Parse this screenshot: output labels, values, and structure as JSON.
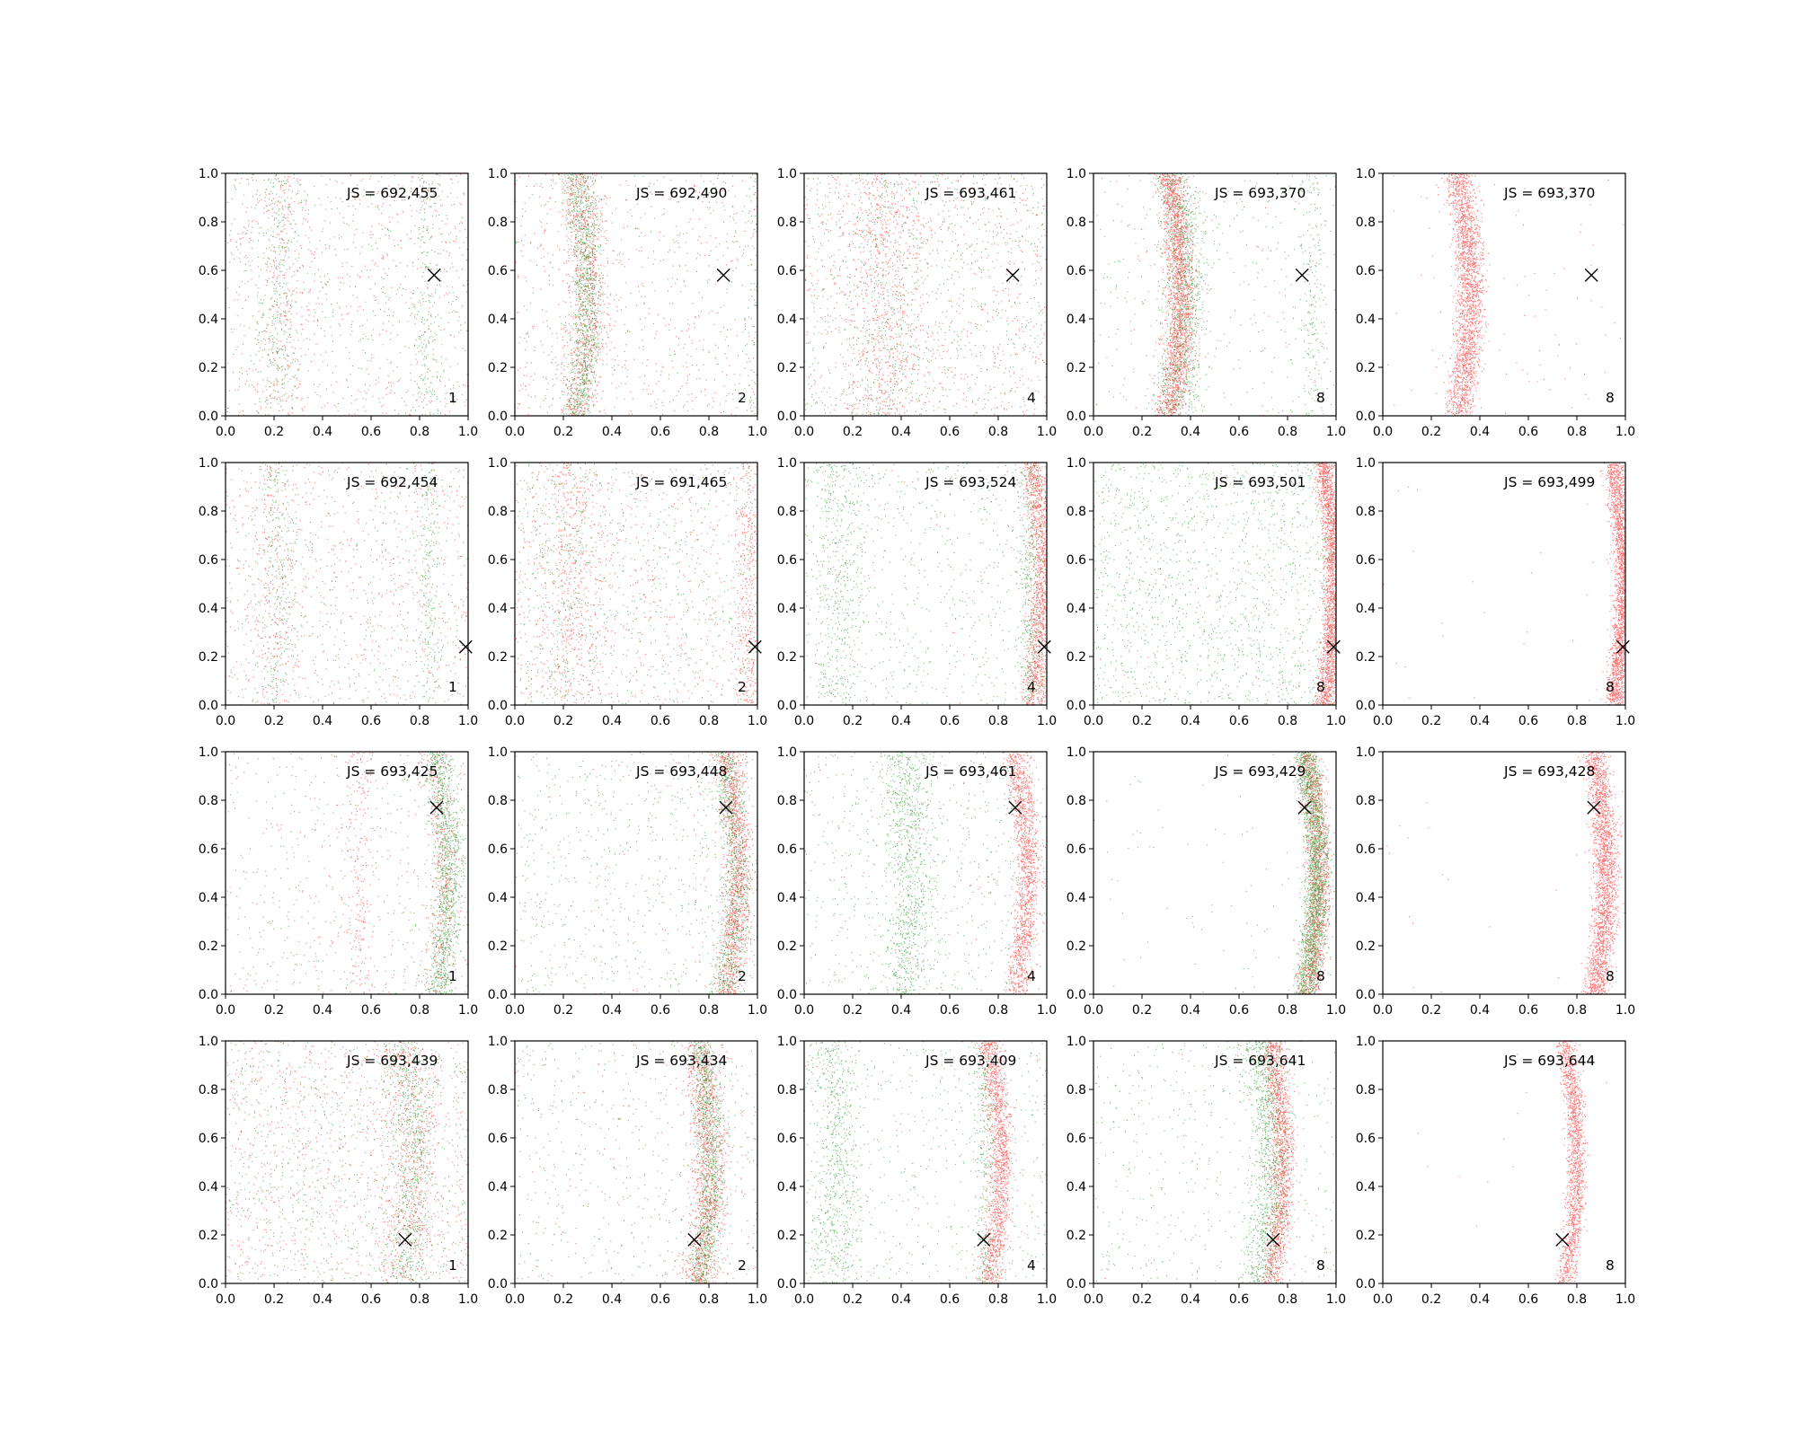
{
  "figure": {
    "colors": {
      "series_a": "#ff0000",
      "series_b": "#008000",
      "marker": "#000000"
    },
    "tick_values": [
      0.0,
      0.2,
      0.4,
      0.6,
      0.8,
      1.0
    ],
    "tick_labels": [
      "0.0",
      "0.2",
      "0.4",
      "0.6",
      "0.8",
      "1.0"
    ]
  },
  "chart_data": [
    {
      "type": "scatter",
      "row": 1,
      "col": 1,
      "js_label": "JS = 692,455",
      "k_label": "1",
      "xlim": [
        0,
        1
      ],
      "ylim": [
        0,
        1
      ],
      "marker_x": 0.86,
      "marker_y": 0.58,
      "series": [
        {
          "color": "#ff0000",
          "curve_center": 0.24,
          "curve_amp": 0.0,
          "band_width": 0.05,
          "band_fraction": 0.2,
          "density": "sparse"
        },
        {
          "color": "#008000",
          "curve_center": 0.2,
          "curve_amp": 0.02,
          "band_width": 0.04,
          "band_fraction": 0.35,
          "second_band": 0.83,
          "density": "sparse"
        }
      ]
    },
    {
      "type": "scatter",
      "row": 1,
      "col": 2,
      "js_label": "JS = 692,490",
      "k_label": "2",
      "xlim": [
        0,
        1
      ],
      "ylim": [
        0,
        1
      ],
      "marker_x": 0.86,
      "marker_y": 0.58,
      "series": [
        {
          "color": "#ff0000",
          "curve_center": 0.25,
          "curve_amp": 0.05,
          "band_width": 0.04,
          "band_fraction": 0.6,
          "density": "medium"
        },
        {
          "color": "#008000",
          "curve_center": 0.25,
          "curve_amp": 0.05,
          "band_width": 0.035,
          "band_fraction": 0.75,
          "second_band": 0.99,
          "density": "medium"
        }
      ]
    },
    {
      "type": "scatter",
      "row": 1,
      "col": 3,
      "js_label": "JS = 693,461",
      "k_label": "4",
      "xlim": [
        0,
        1
      ],
      "ylim": [
        0,
        1
      ],
      "marker_x": 0.86,
      "marker_y": 0.58,
      "series": [
        {
          "color": "#ff0000",
          "curve_center": 0.3,
          "curve_amp": 0.04,
          "band_width": 0.08,
          "band_fraction": 0.45,
          "density": "medium"
        },
        {
          "color": "#008000",
          "curve_center": 0.3,
          "curve_amp": 0.04,
          "band_width": 0.08,
          "band_fraction": 0.3,
          "density": "sparse"
        }
      ]
    },
    {
      "type": "scatter",
      "row": 1,
      "col": 4,
      "js_label": "JS = 693,370",
      "k_label": "8",
      "xlim": [
        0,
        1
      ],
      "ylim": [
        0,
        1
      ],
      "marker_x": 0.86,
      "marker_y": 0.58,
      "series": [
        {
          "color": "#ff0000",
          "curve_center": 0.31,
          "curve_amp": 0.05,
          "band_width": 0.03,
          "band_fraction": 0.95,
          "density": "dense"
        },
        {
          "color": "#008000",
          "curve_center": 0.33,
          "curve_amp": 0.05,
          "band_width": 0.045,
          "band_fraction": 0.65,
          "second_band": 0.9,
          "density": "medium"
        }
      ]
    },
    {
      "type": "scatter",
      "row": 1,
      "col": 5,
      "js_label": "JS = 693,370",
      "k_label": "8",
      "xlim": [
        0,
        1
      ],
      "ylim": [
        0,
        1
      ],
      "marker_x": 0.86,
      "marker_y": 0.58,
      "series": [
        {
          "color": "#ff0000",
          "curve_center": 0.31,
          "curve_amp": 0.05,
          "band_width": 0.03,
          "band_fraction": 0.96,
          "density": "dense"
        }
      ]
    },
    {
      "type": "scatter",
      "row": 2,
      "col": 1,
      "js_label": "JS = 692,454",
      "k_label": "1",
      "xlim": [
        0,
        1
      ],
      "ylim": [
        0,
        1
      ],
      "marker_x": 0.99,
      "marker_y": 0.24,
      "series": [
        {
          "color": "#ff0000",
          "curve_center": 0.2,
          "curve_amp": 0.0,
          "band_width": 0.05,
          "band_fraction": 0.2,
          "density": "sparse"
        },
        {
          "color": "#008000",
          "curve_center": 0.2,
          "curve_amp": 0.02,
          "band_width": 0.04,
          "band_fraction": 0.3,
          "second_band": 0.84,
          "density": "sparse"
        }
      ]
    },
    {
      "type": "scatter",
      "row": 2,
      "col": 2,
      "js_label": "JS = 691,465",
      "k_label": "2",
      "xlim": [
        0,
        1
      ],
      "ylim": [
        0,
        1
      ],
      "marker_x": 0.99,
      "marker_y": 0.24,
      "series": [
        {
          "color": "#ff0000",
          "curve_center": 0.2,
          "curve_amp": 0.03,
          "band_width": 0.08,
          "band_fraction": 0.35,
          "second_band": 0.96,
          "density": "medium"
        },
        {
          "color": "#008000",
          "curve_center": 0.2,
          "curve_amp": 0.02,
          "band_width": 0.08,
          "band_fraction": 0.2,
          "density": "sparse"
        }
      ]
    },
    {
      "type": "scatter",
      "row": 2,
      "col": 3,
      "js_label": "JS = 693,524",
      "k_label": "4",
      "xlim": [
        0,
        1
      ],
      "ylim": [
        0,
        1
      ],
      "marker_x": 0.99,
      "marker_y": 0.24,
      "series": [
        {
          "color": "#ff0000",
          "curve_center": 0.94,
          "curve_amp": 0.04,
          "band_width": 0.025,
          "band_fraction": 0.95,
          "density": "medium"
        },
        {
          "color": "#008000",
          "curve_center": 0.12,
          "curve_amp": 0.03,
          "band_width": 0.06,
          "band_fraction": 0.3,
          "second_band": 0.93,
          "density": "medium"
        }
      ]
    },
    {
      "type": "scatter",
      "row": 2,
      "col": 4,
      "js_label": "JS = 693,501",
      "k_label": "8",
      "xlim": [
        0,
        1
      ],
      "ylim": [
        0,
        1
      ],
      "marker_x": 0.99,
      "marker_y": 0.24,
      "series": [
        {
          "color": "#ff0000",
          "curve_center": 0.95,
          "curve_amp": 0.04,
          "band_width": 0.02,
          "band_fraction": 0.97,
          "density": "dense"
        },
        {
          "color": "#008000",
          "curve_center": 0.5,
          "curve_amp": 0.0,
          "band_width": 0.3,
          "band_fraction": 0.0,
          "density": "medium"
        }
      ]
    },
    {
      "type": "scatter",
      "row": 2,
      "col": 5,
      "js_label": "JS = 693,499",
      "k_label": "8",
      "xlim": [
        0,
        1
      ],
      "ylim": [
        0,
        1
      ],
      "marker_x": 0.99,
      "marker_y": 0.24,
      "series": [
        {
          "color": "#ff0000",
          "curve_center": 0.95,
          "curve_amp": 0.04,
          "band_width": 0.02,
          "band_fraction": 0.99,
          "density": "dense"
        }
      ]
    },
    {
      "type": "scatter",
      "row": 3,
      "col": 1,
      "js_label": "JS = 693,425",
      "k_label": "1",
      "xlim": [
        0,
        1
      ],
      "ylim": [
        0,
        1
      ],
      "marker_x": 0.87,
      "marker_y": 0.77,
      "series": [
        {
          "color": "#ff0000",
          "curve_center": 0.85,
          "curve_amp": 0.05,
          "band_width": 0.03,
          "band_fraction": 0.4,
          "second_band": 0.55,
          "density": "sparse"
        },
        {
          "color": "#008000",
          "curve_center": 0.87,
          "curve_amp": 0.05,
          "band_width": 0.03,
          "band_fraction": 0.8,
          "density": "medium"
        }
      ]
    },
    {
      "type": "scatter",
      "row": 3,
      "col": 2,
      "js_label": "JS = 693,448",
      "k_label": "2",
      "xlim": [
        0,
        1
      ],
      "ylim": [
        0,
        1
      ],
      "marker_x": 0.87,
      "marker_y": 0.77,
      "series": [
        {
          "color": "#ff0000",
          "curve_center": 0.87,
          "curve_amp": 0.05,
          "band_width": 0.028,
          "band_fraction": 0.9,
          "density": "medium"
        },
        {
          "color": "#008000",
          "curve_center": 0.86,
          "curve_amp": 0.05,
          "band_width": 0.03,
          "band_fraction": 0.55,
          "density": "medium"
        }
      ]
    },
    {
      "type": "scatter",
      "row": 3,
      "col": 3,
      "js_label": "JS = 693,461",
      "k_label": "4",
      "xlim": [
        0,
        1
      ],
      "ylim": [
        0,
        1
      ],
      "marker_x": 0.87,
      "marker_y": 0.77,
      "series": [
        {
          "color": "#ff0000",
          "curve_center": 0.87,
          "curve_amp": 0.05,
          "band_width": 0.025,
          "band_fraction": 0.95,
          "density": "medium"
        },
        {
          "color": "#008000",
          "curve_center": 0.4,
          "curve_amp": 0.04,
          "band_width": 0.05,
          "band_fraction": 0.6,
          "density": "medium"
        }
      ]
    },
    {
      "type": "scatter",
      "row": 3,
      "col": 4,
      "js_label": "JS = 693,429",
      "k_label": "8",
      "xlim": [
        0,
        1
      ],
      "ylim": [
        0,
        1
      ],
      "marker_x": 0.87,
      "marker_y": 0.77,
      "series": [
        {
          "color": "#ff0000",
          "curve_center": 0.88,
          "curve_amp": 0.05,
          "band_width": 0.025,
          "band_fraction": 0.98,
          "density": "medium"
        },
        {
          "color": "#008000",
          "curve_center": 0.87,
          "curve_amp": 0.05,
          "band_width": 0.025,
          "band_fraction": 0.97,
          "density": "dense"
        }
      ]
    },
    {
      "type": "scatter",
      "row": 3,
      "col": 5,
      "js_label": "JS = 693,428",
      "k_label": "8",
      "xlim": [
        0,
        1
      ],
      "ylim": [
        0,
        1
      ],
      "marker_x": 0.87,
      "marker_y": 0.77,
      "series": [
        {
          "color": "#ff0000",
          "curve_center": 0.87,
          "curve_amp": 0.05,
          "band_width": 0.025,
          "band_fraction": 0.99,
          "density": "dense"
        }
      ]
    },
    {
      "type": "scatter",
      "row": 4,
      "col": 1,
      "js_label": "JS = 693,439",
      "k_label": "1",
      "xlim": [
        0,
        1
      ],
      "ylim": [
        0,
        1
      ],
      "marker_x": 0.74,
      "marker_y": 0.18,
      "series": [
        {
          "color": "#ff0000",
          "curve_center": 0.72,
          "curve_amp": 0.05,
          "band_width": 0.05,
          "band_fraction": 0.35,
          "density": "medium"
        },
        {
          "color": "#008000",
          "curve_center": 0.72,
          "curve_amp": 0.05,
          "band_width": 0.04,
          "band_fraction": 0.45,
          "density": "medium"
        }
      ]
    },
    {
      "type": "scatter",
      "row": 4,
      "col": 2,
      "js_label": "JS = 693,434",
      "k_label": "2",
      "xlim": [
        0,
        1
      ],
      "ylim": [
        0,
        1
      ],
      "marker_x": 0.74,
      "marker_y": 0.18,
      "series": [
        {
          "color": "#ff0000",
          "curve_center": 0.75,
          "curve_amp": 0.05,
          "band_width": 0.035,
          "band_fraction": 0.85,
          "density": "medium"
        },
        {
          "color": "#008000",
          "curve_center": 0.76,
          "curve_amp": 0.05,
          "band_width": 0.03,
          "band_fraction": 0.7,
          "density": "medium"
        }
      ]
    },
    {
      "type": "scatter",
      "row": 4,
      "col": 3,
      "js_label": "JS = 693,409",
      "k_label": "4",
      "xlim": [
        0,
        1
      ],
      "ylim": [
        0,
        1
      ],
      "marker_x": 0.74,
      "marker_y": 0.18,
      "series": [
        {
          "color": "#ff0000",
          "curve_center": 0.76,
          "curve_amp": 0.05,
          "band_width": 0.025,
          "band_fraction": 0.97,
          "density": "medium"
        },
        {
          "color": "#008000",
          "curve_center": 0.1,
          "curve_amp": 0.04,
          "band_width": 0.05,
          "band_fraction": 0.45,
          "second_band": 0.74,
          "density": "medium"
        }
      ]
    },
    {
      "type": "scatter",
      "row": 4,
      "col": 4,
      "js_label": "JS = 693,641",
      "k_label": "8",
      "xlim": [
        0,
        1
      ],
      "ylim": [
        0,
        1
      ],
      "marker_x": 0.74,
      "marker_y": 0.18,
      "series": [
        {
          "color": "#ff0000",
          "curve_center": 0.73,
          "curve_amp": 0.05,
          "band_width": 0.025,
          "band_fraction": 0.97,
          "density": "medium"
        },
        {
          "color": "#008000",
          "curve_center": 0.68,
          "curve_amp": 0.05,
          "band_width": 0.04,
          "band_fraction": 0.7,
          "density": "medium"
        }
      ]
    },
    {
      "type": "scatter",
      "row": 4,
      "col": 5,
      "js_label": "JS = 693,644",
      "k_label": "8",
      "xlim": [
        0,
        1
      ],
      "ylim": [
        0,
        1
      ],
      "marker_x": 0.74,
      "marker_y": 0.18,
      "series": [
        {
          "color": "#ff0000",
          "curve_center": 0.75,
          "curve_amp": 0.05,
          "band_width": 0.02,
          "band_fraction": 0.99,
          "density": "medium"
        }
      ]
    }
  ]
}
